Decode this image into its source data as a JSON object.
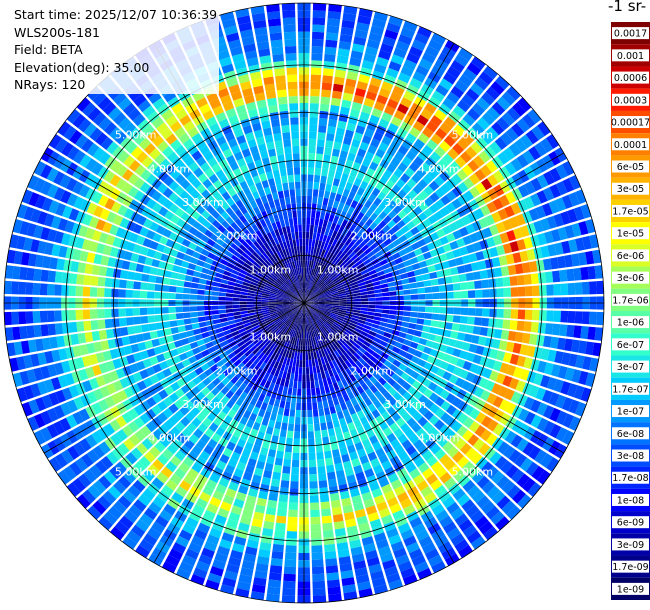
{
  "info": {
    "start_time": "Start time: 2025/12/07 10:36:39",
    "instrument": "WLS200s-181",
    "field": "Field: BETA",
    "elevation": "Elevation(deg): 35.00",
    "nrays": "NRays: 120"
  },
  "colorbar": {
    "units_label": "-1 sr-",
    "ticks": [
      "0.0017",
      "0.001",
      "0.0006",
      "0.0003",
      "0.00017",
      "0.0001",
      "6e-05",
      "3e-05",
      "1.7e-05",
      "1e-05",
      "6e-06",
      "3e-06",
      "1.7e-06",
      "1e-06",
      "6e-07",
      "3e-07",
      "1.7e-07",
      "1e-07",
      "6e-08",
      "3e-08",
      "1.7e-08",
      "1e-08",
      "6e-09",
      "3e-09",
      "1.7e-09",
      "1e-09"
    ],
    "colors": [
      "#7f0000",
      "#a00000",
      "#cc0000",
      "#ff1a00",
      "#ff4d00",
      "#ff8000",
      "#ff9900",
      "#ffb300",
      "#ffd000",
      "#ffff00",
      "#d9ff26",
      "#a6ff59",
      "#80ff80",
      "#59ffa6",
      "#33ffcc",
      "#1ae6e6",
      "#00ccff",
      "#0099ff",
      "#0073ff",
      "#004dff",
      "#0026ff",
      "#0000ff",
      "#0000cc",
      "#0000a6",
      "#00008b",
      "#000066"
    ]
  },
  "range_rings": {
    "labels": [
      "1.00km",
      "2.00km",
      "3.00km",
      "4.00km",
      "5.00km"
    ]
  },
  "chart_data": {
    "type": "heatmap",
    "title": "",
    "field": "BETA",
    "nrays": 120,
    "elevation_deg": 35.0,
    "range_rings_km": [
      1,
      2,
      3,
      4,
      5
    ],
    "max_range_km": 6.3,
    "radial_profile": [
      {
        "range_km": 0.0,
        "beta": 1e-09
      },
      {
        "range_km": 1.0,
        "beta": 3e-09
      },
      {
        "range_km": 2.0,
        "beta": 3e-08
      },
      {
        "range_km": 3.0,
        "beta": 3e-07
      },
      {
        "range_km": 4.0,
        "beta": 1e-07
      },
      {
        "range_km": 4.6,
        "beta": 3e-05
      },
      {
        "range_km": 5.2,
        "beta": 1e-07
      },
      {
        "range_km": 6.0,
        "beta": 3e-08
      }
    ]
  }
}
